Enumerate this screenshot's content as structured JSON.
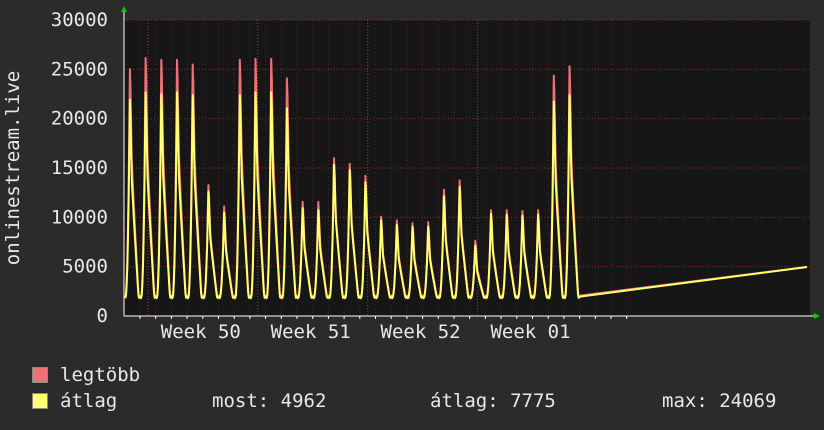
{
  "chart_data": {
    "type": "line",
    "ylabel": "onlinestream.live",
    "ylim": [
      0,
      30000
    ],
    "yticks": [
      "0",
      "5000",
      "10000",
      "15000",
      "20000",
      "25000",
      "30000"
    ],
    "x_tick_labels": [
      "Week 50",
      "Week 51",
      "Week 52",
      "Week 01"
    ],
    "x_tick_days": [
      4,
      11,
      18,
      25
    ],
    "x_range_days": [
      0,
      31
    ],
    "grid": true,
    "series": [
      {
        "name": "legtöbb",
        "color": "#f07078",
        "daily_peaks": [
          26500,
          27700,
          27500,
          27500,
          27000,
          14000,
          11700,
          27500,
          27600,
          27600,
          25500,
          12200,
          12200,
          16900,
          16300,
          15000,
          10600,
          10200,
          9900,
          10000,
          13500,
          14500,
          8000,
          11300,
          11300,
          11200,
          11300,
          25800,
          26800
        ]
      },
      {
        "name": "átlag",
        "color": "#ffff70",
        "daily_peaks": [
          23200,
          24000,
          23800,
          24000,
          23700,
          13300,
          11000,
          23700,
          24000,
          24000,
          22300,
          11500,
          11300,
          16200,
          15600,
          14300,
          10200,
          9700,
          9500,
          9500,
          12800,
          13800,
          7500,
          10900,
          10800,
          10700,
          10800,
          23000,
          23700
        ]
      }
    ]
  },
  "legend": [
    {
      "label": "legtöbb",
      "color": "#f07078"
    },
    {
      "label": "átlag",
      "color": "#ffff70"
    }
  ],
  "stats": {
    "most": "most: 4962",
    "atlag": "átlag: 7775",
    "max": "max: 24069"
  }
}
